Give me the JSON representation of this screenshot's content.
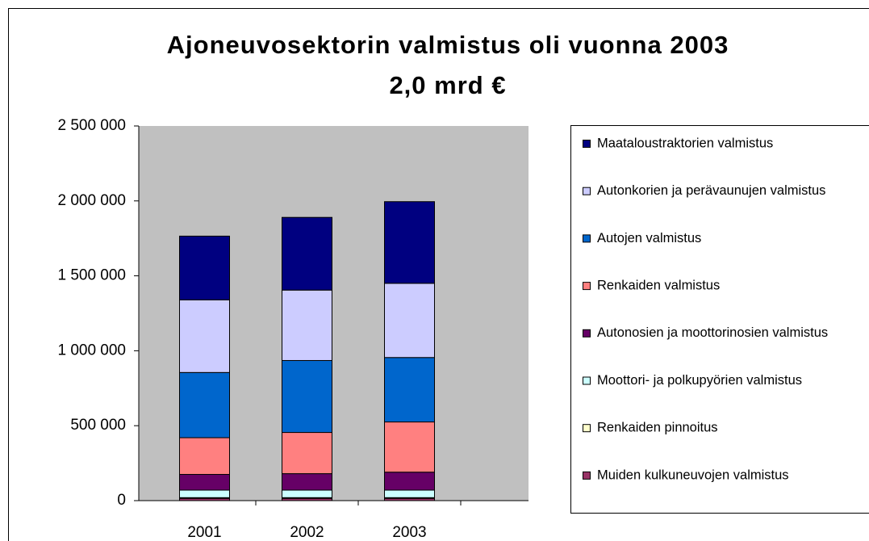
{
  "chart_data": {
    "type": "bar",
    "stacked": true,
    "title": [
      "Ajoneuvosektorin valmistus oli vuonna 2003",
      "2,0 mrd €"
    ],
    "categories": [
      "2001",
      "2002",
      "2003"
    ],
    "series": [
      {
        "name": "Maataloustraktorien valmistus",
        "color": "#000080",
        "values": [
          425000,
          485000,
          545000
        ]
      },
      {
        "name": "Autonkorien ja perävaunujen valmistus",
        "color": "#ccccff",
        "values": [
          485000,
          470000,
          495000
        ]
      },
      {
        "name": "Autojen valmistus",
        "color": "#0066cc",
        "values": [
          435000,
          480000,
          430000
        ]
      },
      {
        "name": "Renkaiden valmistus",
        "color": "#ff8080",
        "values": [
          245000,
          275000,
          335000
        ]
      },
      {
        "name": "Autonosien ja moottorinosien valmistus",
        "color": "#660066",
        "values": [
          105000,
          110000,
          120000
        ]
      },
      {
        "name": "Moottori- ja polkupyörien valmistus",
        "color": "#ccffff",
        "values": [
          50000,
          50000,
          50000
        ]
      },
      {
        "name": "Renkaiden pinnoitus",
        "color": "#ffffcc",
        "values": [
          5000,
          5000,
          5000
        ]
      },
      {
        "name": "Muiden kulkuneuvojen valmistus",
        "color": "#993366",
        "values": [
          15000,
          15000,
          15000
        ]
      }
    ],
    "ylim": [
      0,
      2500000
    ],
    "yticks": [
      0,
      {
        "value": 500000,
        "label": "500 000"
      },
      {
        "value": 1000000,
        "label": "1 000 000"
      },
      {
        "value": 1500000,
        "label": "1 500 000"
      },
      {
        "value": 2000000,
        "label": "2 000 000"
      },
      {
        "value": 2500000,
        "label": "2 500 000"
      }
    ],
    "grid": false,
    "legend": "right",
    "plot_background": "#c0c0c0"
  }
}
